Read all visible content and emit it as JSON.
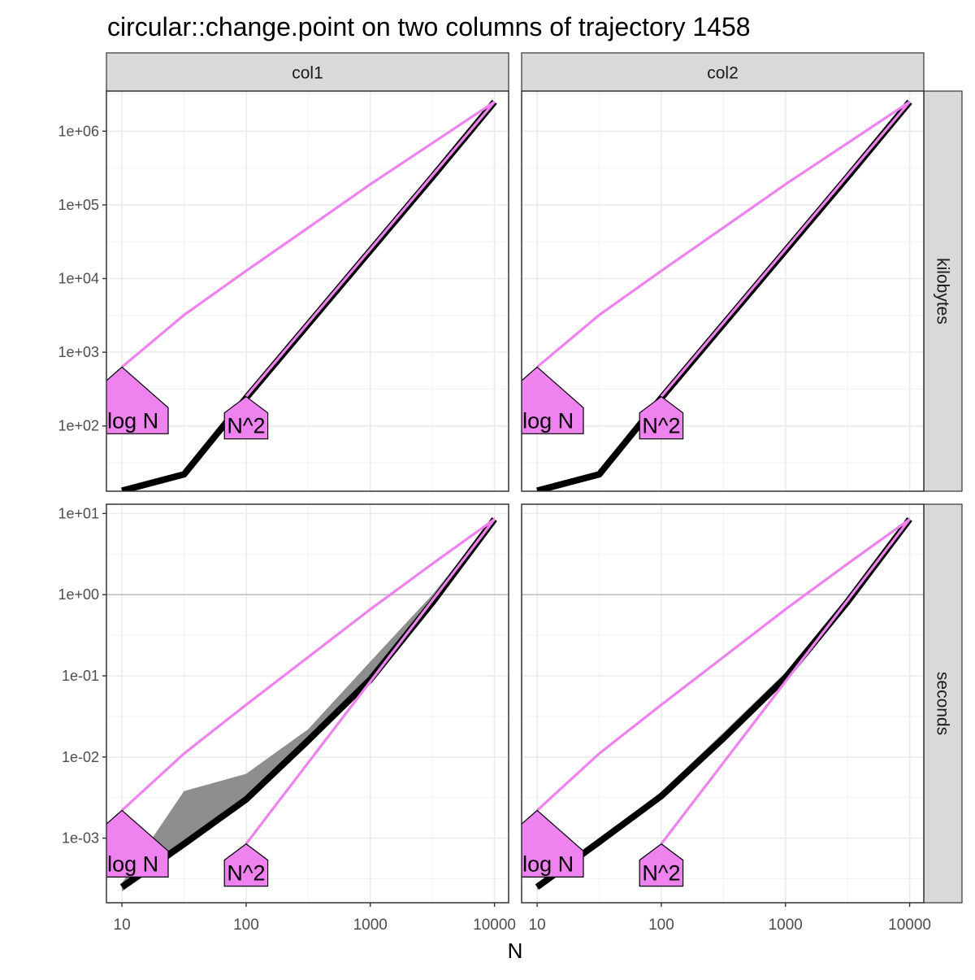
{
  "chart_data": {
    "type": "line",
    "title": "circular::change.point on two columns of trajectory 1458",
    "xlabel": "N",
    "ylabel": "",
    "x_scale": "log10",
    "y_scale": "log10",
    "grid": true,
    "legend": "none",
    "colors": {
      "reference": "#ee82ee",
      "measured": "#000000",
      "band": "#7a7a7a",
      "strip": "#d9d9d9",
      "grid": "#ebebeb"
    },
    "facet_columns": [
      "col1",
      "col2"
    ],
    "facet_rows": [
      "kilobytes",
      "seconds"
    ],
    "x_ticks": [
      {
        "value": 10,
        "label": "10"
      },
      {
        "value": 100,
        "label": "100"
      },
      {
        "value": 1000,
        "label": "1000"
      },
      {
        "value": 10000,
        "label": "10000"
      }
    ],
    "x_range": [
      7.5,
      13000
    ],
    "rows": {
      "kilobytes": {
        "y_range": [
          13,
          3500000
        ],
        "y_ticks": [
          {
            "value": 100,
            "label": "1e+02"
          },
          {
            "value": 1000,
            "label": "1e+03"
          },
          {
            "value": 10000,
            "label": "1e+04"
          },
          {
            "value": 100000,
            "label": "1e+05"
          },
          {
            "value": 1000000,
            "label": "1e+06"
          }
        ]
      },
      "seconds": {
        "y_range": [
          0.00016,
          13
        ],
        "y_ticks": [
          {
            "value": 0.001,
            "label": "1e-03"
          },
          {
            "value": 0.01,
            "label": "1e-02"
          },
          {
            "value": 0.1,
            "label": "1e-01"
          },
          {
            "value": 1,
            "label": "1e+00"
          },
          {
            "value": 10,
            "label": "1e+01"
          }
        ]
      }
    },
    "panels": [
      {
        "column": "col1",
        "row": "kilobytes",
        "measured": {
          "x": [
            10,
            31.6,
            100,
            316,
            1000,
            3162,
            10000
          ],
          "median": [
            13.2,
            22,
            240,
            2400,
            24000,
            240000,
            2500000
          ],
          "min": [
            13,
            21,
            225,
            2300,
            23000,
            230000,
            2400000
          ],
          "max": [
            14,
            23,
            255,
            2500,
            25000,
            250000,
            2600000
          ]
        },
        "references": [
          {
            "label": "N log N",
            "x": [
              10,
              31.6,
              100,
              316,
              1000,
              3162,
              10000
            ],
            "y": [
              630,
              3200,
              12700,
              49000,
              190000,
              690000,
              2500000
            ]
          },
          {
            "label": "N^2",
            "x": [
              100,
              316,
              1000,
              3162,
              10000
            ],
            "y": [
              250,
              2500,
              25000,
              250000,
              2500000
            ]
          }
        ],
        "reference_labels": [
          {
            "text": "N log N",
            "x": 10,
            "y": 630
          },
          {
            "text": "N^2",
            "x": 100,
            "y": 250
          }
        ]
      },
      {
        "column": "col2",
        "row": "kilobytes",
        "measured": {
          "x": [
            10,
            31.6,
            100,
            316,
            1000,
            3162,
            10000
          ],
          "median": [
            13.2,
            22,
            240,
            2400,
            24000,
            240000,
            2500000
          ],
          "min": [
            13,
            21,
            225,
            2300,
            23000,
            230000,
            2400000
          ],
          "max": [
            14,
            23,
            255,
            2500,
            25000,
            250000,
            2600000
          ]
        },
        "references": [
          {
            "label": "N log N",
            "x": [
              10,
              31.6,
              100,
              316,
              1000,
              3162,
              10000
            ],
            "y": [
              630,
              3200,
              12700,
              49000,
              190000,
              690000,
              2500000
            ]
          },
          {
            "label": "N^2",
            "x": [
              100,
              316,
              1000,
              3162,
              10000
            ],
            "y": [
              250,
              2500,
              25000,
              250000,
              2500000
            ]
          }
        ],
        "reference_labels": [
          {
            "text": "N log N",
            "x": 10,
            "y": 630
          },
          {
            "text": "N^2",
            "x": 100,
            "y": 250
          }
        ]
      },
      {
        "column": "col1",
        "row": "seconds",
        "measured": {
          "x": [
            10,
            31.6,
            100,
            316,
            1000,
            3162,
            10000
          ],
          "median": [
            0.00025,
            0.00085,
            0.003,
            0.016,
            0.09,
            0.8,
            8.5
          ],
          "min": [
            0.00022,
            0.00075,
            0.0027,
            0.014,
            0.08,
            0.72,
            7.8
          ],
          "max": [
            0.00028,
            0.0038,
            0.0062,
            0.022,
            0.15,
            1.0,
            9.0
          ]
        },
        "references": [
          {
            "label": "N log N",
            "x": [
              10,
              31.6,
              100,
              316,
              1000,
              3162,
              10000
            ],
            "y": [
              0.0022,
              0.011,
              0.044,
              0.17,
              0.66,
              2.4,
              8.5
            ]
          },
          {
            "label": "N^2",
            "x": [
              100,
              316,
              1000,
              3162,
              10000
            ],
            "y": [
              0.00085,
              0.0085,
              0.085,
              0.85,
              8.5
            ]
          }
        ],
        "reference_labels": [
          {
            "text": "N log N",
            "x": 10,
            "y": 0.0022
          },
          {
            "text": "N^2",
            "x": 100,
            "y": 0.00085
          }
        ]
      },
      {
        "column": "col2",
        "row": "seconds",
        "measured": {
          "x": [
            10,
            31.6,
            100,
            316,
            1000,
            3162,
            10000
          ],
          "median": [
            0.00025,
            0.0009,
            0.0033,
            0.017,
            0.095,
            0.82,
            8.5
          ],
          "min": [
            0.00023,
            0.0008,
            0.003,
            0.015,
            0.085,
            0.75,
            7.8
          ],
          "max": [
            0.00028,
            0.00095,
            0.0037,
            0.02,
            0.11,
            0.9,
            9.0
          ]
        },
        "references": [
          {
            "label": "N log N",
            "x": [
              10,
              31.6,
              100,
              316,
              1000,
              3162,
              10000
            ],
            "y": [
              0.0022,
              0.011,
              0.044,
              0.17,
              0.66,
              2.4,
              8.5
            ]
          },
          {
            "label": "N^2",
            "x": [
              100,
              316,
              1000,
              3162,
              10000
            ],
            "y": [
              0.00085,
              0.0085,
              0.085,
              0.85,
              8.5
            ]
          }
        ],
        "reference_labels": [
          {
            "text": "N log N",
            "x": 10,
            "y": 0.0022
          },
          {
            "text": "N^2",
            "x": 100,
            "y": 0.00085
          }
        ]
      }
    ]
  }
}
